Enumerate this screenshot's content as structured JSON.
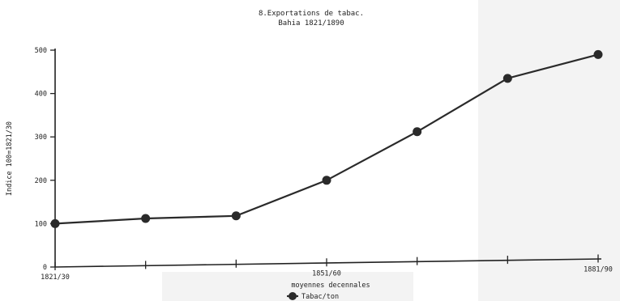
{
  "chart_data": {
    "type": "line",
    "title": "8.Exportations de tabac.",
    "subtitle": "Bahia 1821/1890",
    "xlabel": "moyennes decennales",
    "ylabel": "Indice 100=1821/30",
    "x_tick_labels": [
      "1821/30",
      "",
      "",
      "1851/60",
      "",
      "",
      "1881/90"
    ],
    "ylim": [
      0,
      500
    ],
    "y_ticks": [
      0,
      100,
      200,
      300,
      400,
      500
    ],
    "grid": false,
    "legend_position": "bottom-center",
    "series": [
      {
        "name": "Tabac/ton",
        "color": "#2a2a2a",
        "marker": "circle",
        "values": [
          100,
          112,
          118,
          200,
          312,
          435,
          490
        ]
      }
    ]
  }
}
